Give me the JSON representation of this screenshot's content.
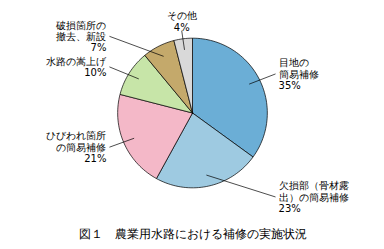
{
  "chart_data": {
    "type": "pie",
    "title": "図１　農業用水路における補修の実施状況",
    "categories": [
      "目地の\n簡易補修",
      "欠損部（骨材露\n出）の簡易補修",
      "ひびわれ箇所\nの簡易補修",
      "水路の嵩上げ",
      "破損箇所の\n撤去、新設",
      "その他"
    ],
    "values": [
      35,
      23,
      21,
      10,
      7,
      4
    ],
    "value_labels": [
      "35%",
      "23%",
      "21%",
      "10%",
      "7%",
      "4%"
    ],
    "data_labels": true,
    "colors": [
      "#6baed6",
      "#9ecae1",
      "#f4b8c8",
      "#c7e5a8",
      "#c4a96b",
      "#d9d9d9"
    ]
  }
}
